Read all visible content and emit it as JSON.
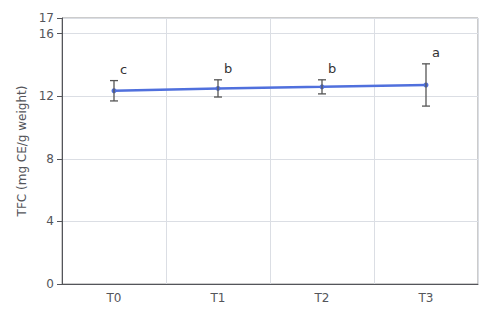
{
  "chart_data": {
    "type": "line",
    "categories": [
      "T0",
      "T1",
      "T2",
      "T3"
    ],
    "values": [
      12.35,
      12.5,
      12.6,
      12.72
    ],
    "errors": [
      0.65,
      0.55,
      0.45,
      1.35
    ],
    "annotations": [
      "c",
      "b",
      "b",
      "a"
    ],
    "ylabel": "TFC (mg CE/g weight)",
    "ylim": [
      0,
      17
    ],
    "yticks": [
      0,
      4,
      8,
      12,
      16
    ],
    "grid": true
  }
}
